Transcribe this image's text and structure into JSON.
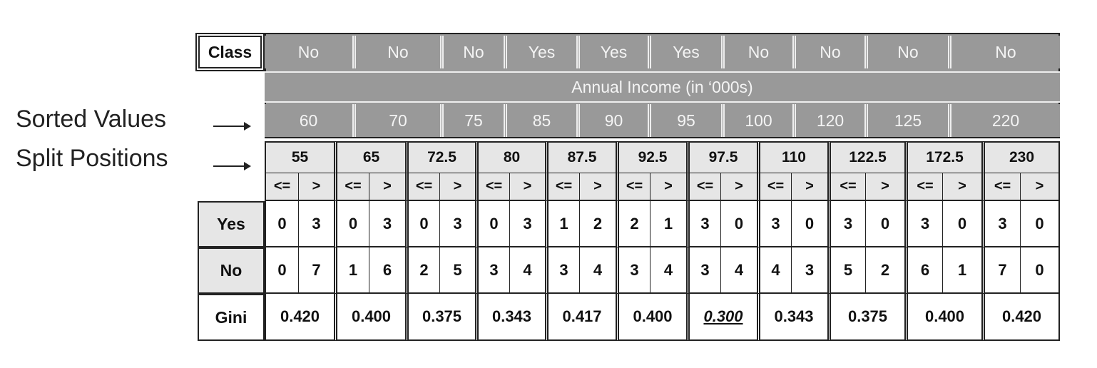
{
  "side_labels": {
    "sorted": "Sorted Values",
    "split": "Split Positions"
  },
  "class_header": "Class",
  "classes": [
    "No",
    "No",
    "No",
    "Yes",
    "Yes",
    "Yes",
    "No",
    "No",
    "No",
    "No"
  ],
  "annual_income_label": "Annual Income (in ‘000s)",
  "sorted_values": [
    "60",
    "70",
    "75",
    "85",
    "90",
    "95",
    "100",
    "120",
    "125",
    "220"
  ],
  "split_positions": [
    "55",
    "65",
    "72.5",
    "80",
    "87.5",
    "92.5",
    "97.5",
    "110",
    "122.5",
    "172.5",
    "230"
  ],
  "sign_le": "<=",
  "sign_gt": ">",
  "row_labels": {
    "yes": "Yes",
    "no": "No",
    "gini": "Gini"
  },
  "yes_counts": [
    [
      0,
      3
    ],
    [
      0,
      3
    ],
    [
      0,
      3
    ],
    [
      0,
      3
    ],
    [
      1,
      2
    ],
    [
      2,
      1
    ],
    [
      3,
      0
    ],
    [
      3,
      0
    ],
    [
      3,
      0
    ],
    [
      3,
      0
    ],
    [
      3,
      0
    ]
  ],
  "no_counts": [
    [
      0,
      7
    ],
    [
      1,
      6
    ],
    [
      2,
      5
    ],
    [
      3,
      4
    ],
    [
      3,
      4
    ],
    [
      3,
      4
    ],
    [
      3,
      4
    ],
    [
      4,
      3
    ],
    [
      5,
      2
    ],
    [
      6,
      1
    ],
    [
      7,
      0
    ]
  ],
  "gini": [
    "0.420",
    "0.400",
    "0.375",
    "0.343",
    "0.417",
    "0.400",
    "0.300",
    "0.343",
    "0.375",
    "0.400",
    "0.420"
  ],
  "best_split_index": 6,
  "colors": {
    "header_gray": "#999999",
    "light_gray": "#e6e6e6",
    "border": "#222222"
  }
}
